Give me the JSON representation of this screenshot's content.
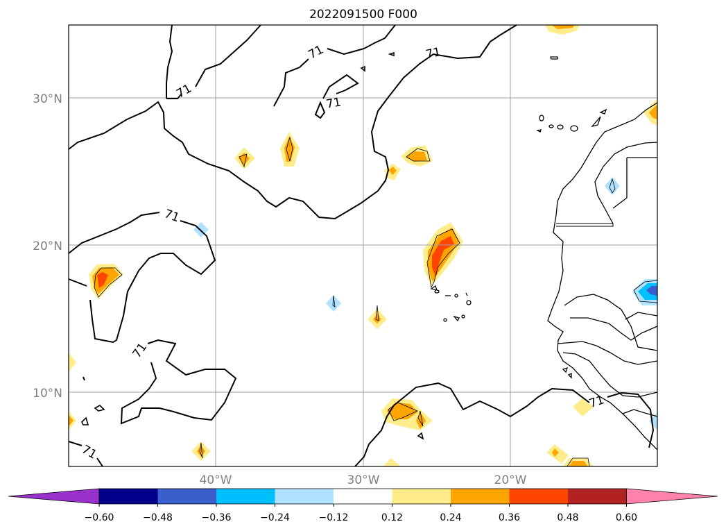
{
  "title": "2022091500 F000",
  "map": {
    "lat_labels": [
      "30°N",
      "20°N",
      "10°N"
    ],
    "lon_labels": [
      "40°W",
      "30°W",
      "20°W"
    ],
    "contour_labels": [
      "71",
      "71",
      "71",
      "71",
      "71",
      "71",
      "71",
      "71"
    ],
    "gridline_color": "#a0a0a0",
    "coastline_color": "#000000"
  },
  "colorbar": {
    "ticks": [
      "−0.60",
      "−0.48",
      "−0.36",
      "−0.24",
      "−0.12",
      "0.12",
      "0.24",
      "0.36",
      "0.48",
      "0.60"
    ],
    "colors": [
      "#9932cc",
      "#00008b",
      "#3a5fcd",
      "#00bfff",
      "#b0e2ff",
      "#ffffff",
      "#ffec8b",
      "#ffa500",
      "#ff4500",
      "#b22222",
      "#ff82ab"
    ],
    "extend": "both"
  }
}
